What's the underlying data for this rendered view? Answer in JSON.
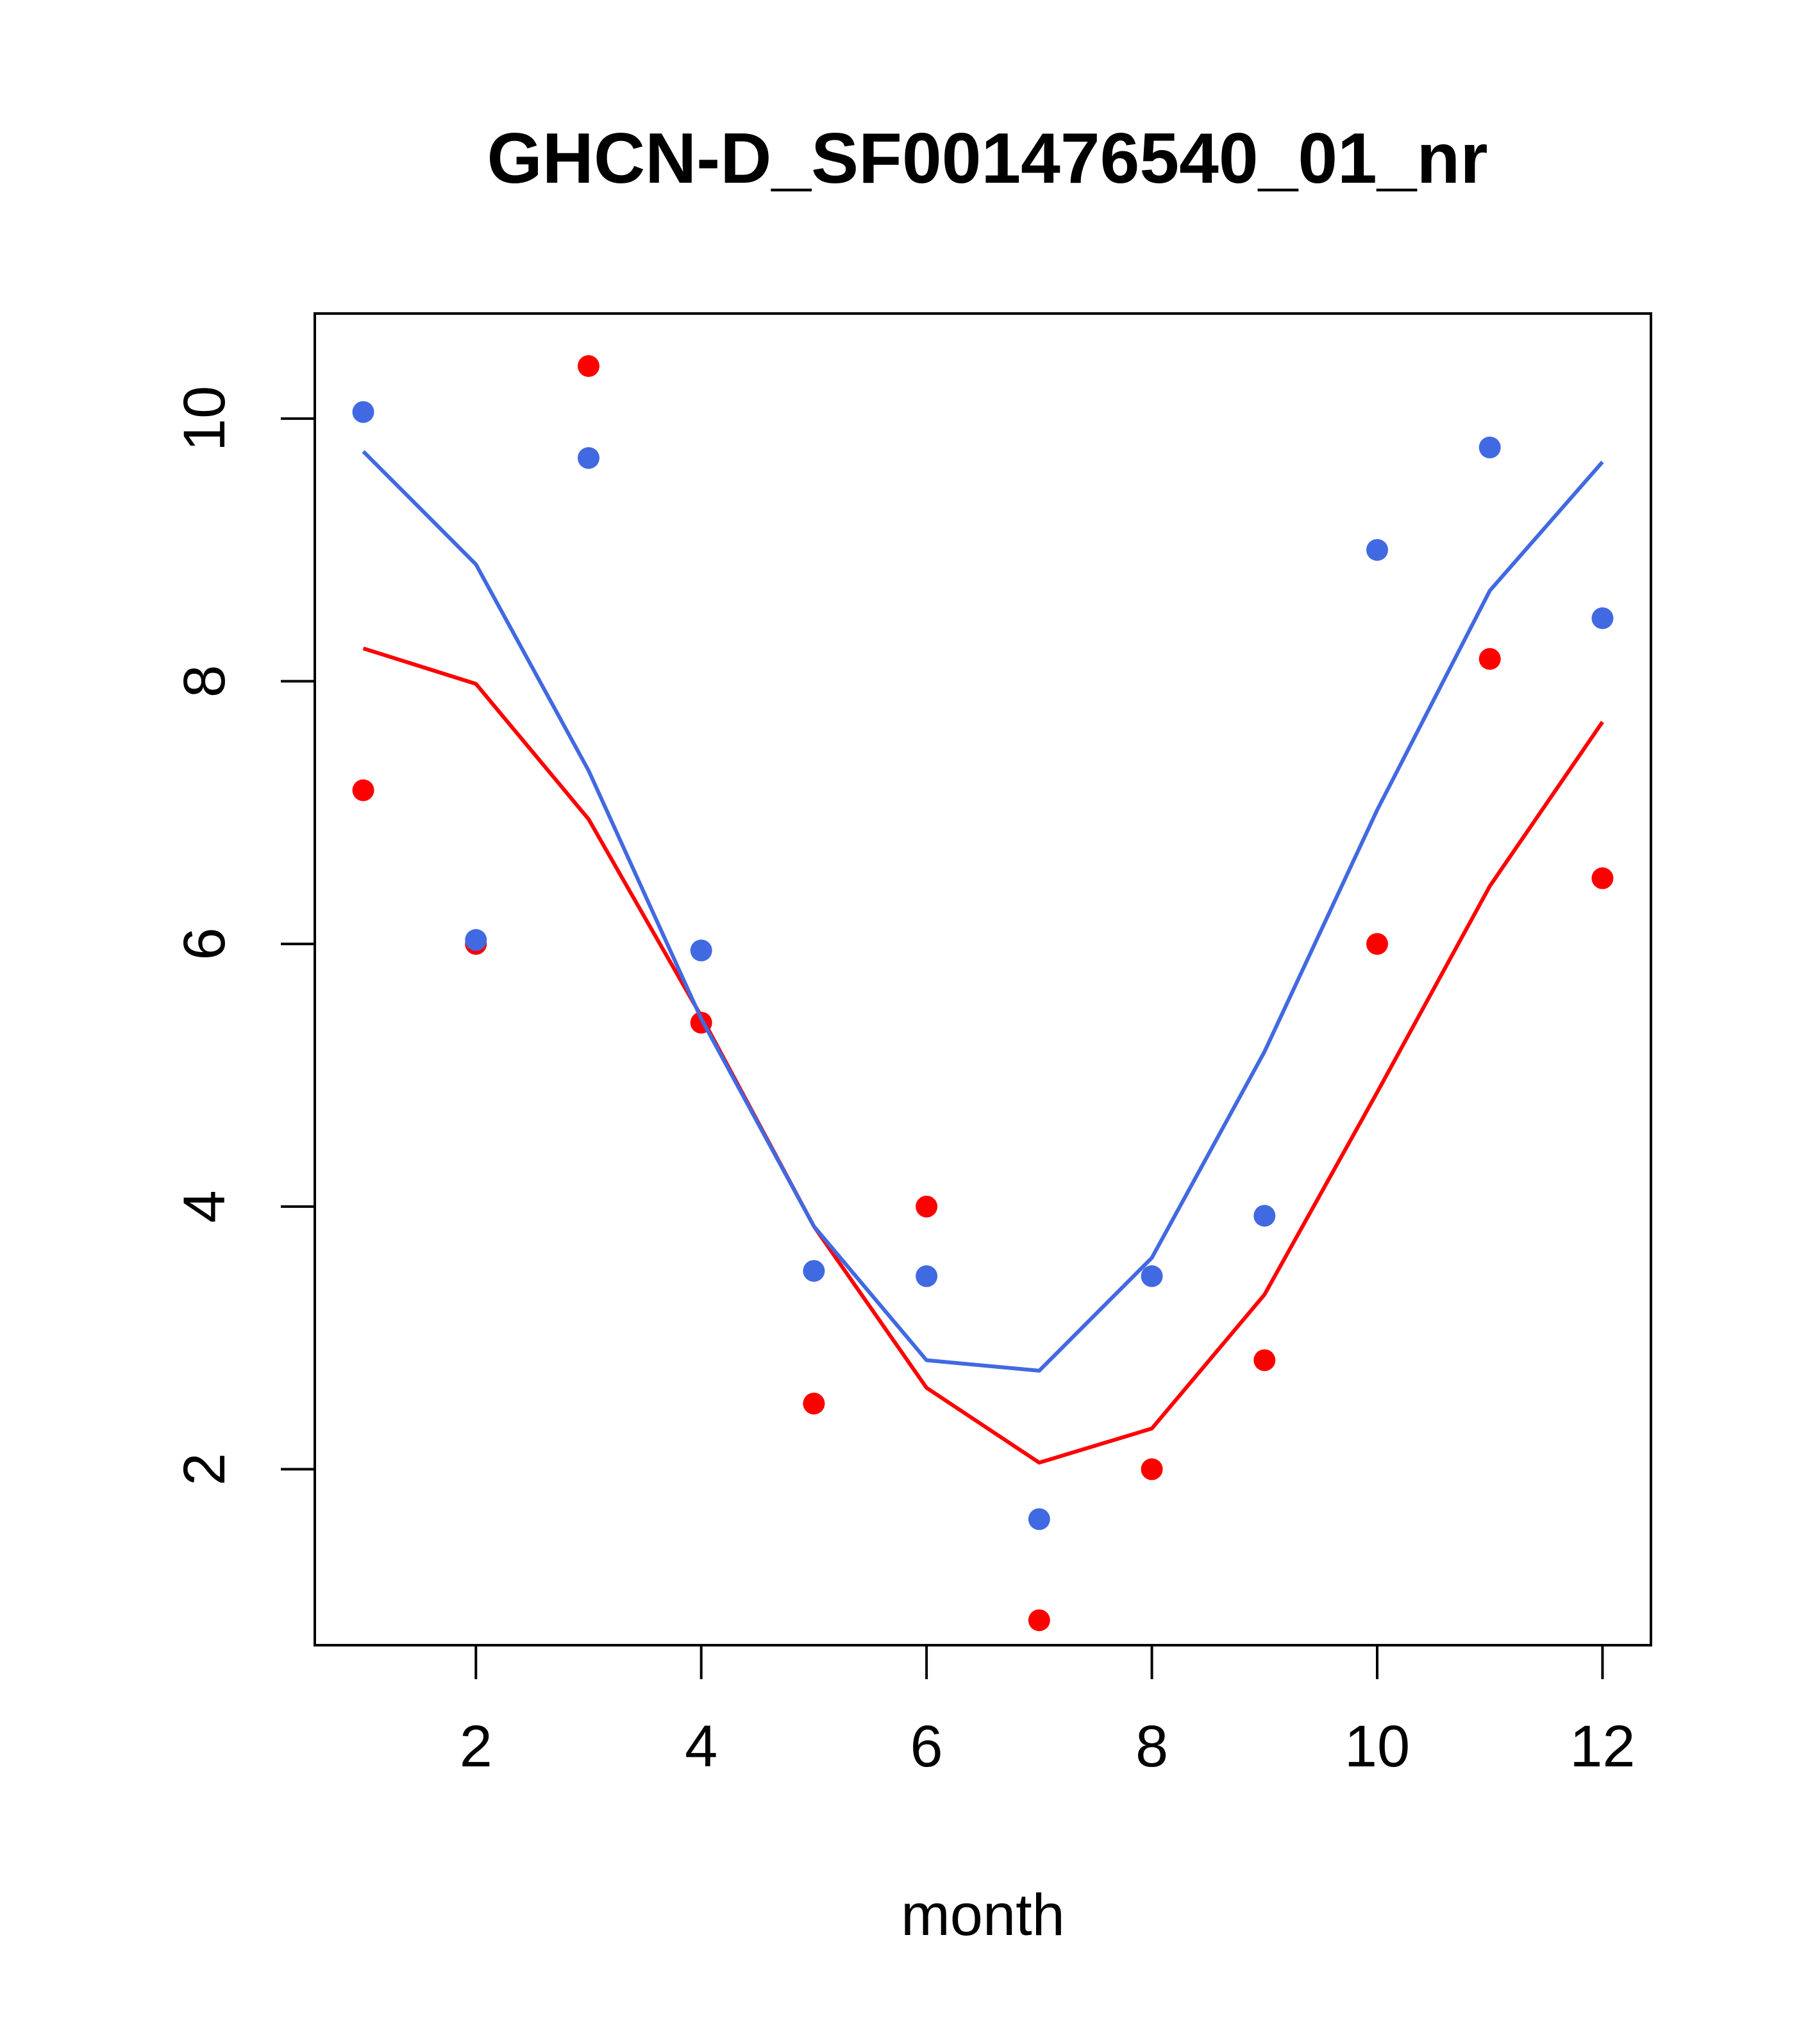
{
  "chart_data": {
    "type": "line",
    "title": "GHCN-D_SF001476540_01_nr",
    "xlabel": "month",
    "ylabel": "",
    "xlim": [
      0.57,
      12.43
    ],
    "ylim": [
      0.66,
      10.8
    ],
    "xticks": [
      2,
      4,
      6,
      8,
      10,
      12
    ],
    "yticks": [
      2,
      4,
      6,
      8,
      10
    ],
    "grid": false,
    "x": [
      1,
      2,
      3,
      4,
      5,
      6,
      7,
      8,
      9,
      10,
      11,
      12
    ],
    "series": [
      {
        "color": "#ff0000",
        "points": [
          7.17,
          6.0,
          10.4,
          5.4,
          2.5,
          4.0,
          0.85,
          2.0,
          2.83,
          6.0,
          8.17,
          6.5
        ],
        "line": [
          8.25,
          7.98,
          6.95,
          5.45,
          3.85,
          2.62,
          2.05,
          2.31,
          3.33,
          4.87,
          6.44,
          7.69
        ]
      },
      {
        "color": "#4169e1",
        "points": [
          10.05,
          6.03,
          9.7,
          5.95,
          3.51,
          3.47,
          1.62,
          3.47,
          3.93,
          9.0,
          9.78,
          8.48
        ],
        "line": [
          9.75,
          8.89,
          7.32,
          5.43,
          3.85,
          2.83,
          2.75,
          3.61,
          5.18,
          7.02,
          8.69,
          9.67
        ]
      }
    ]
  }
}
